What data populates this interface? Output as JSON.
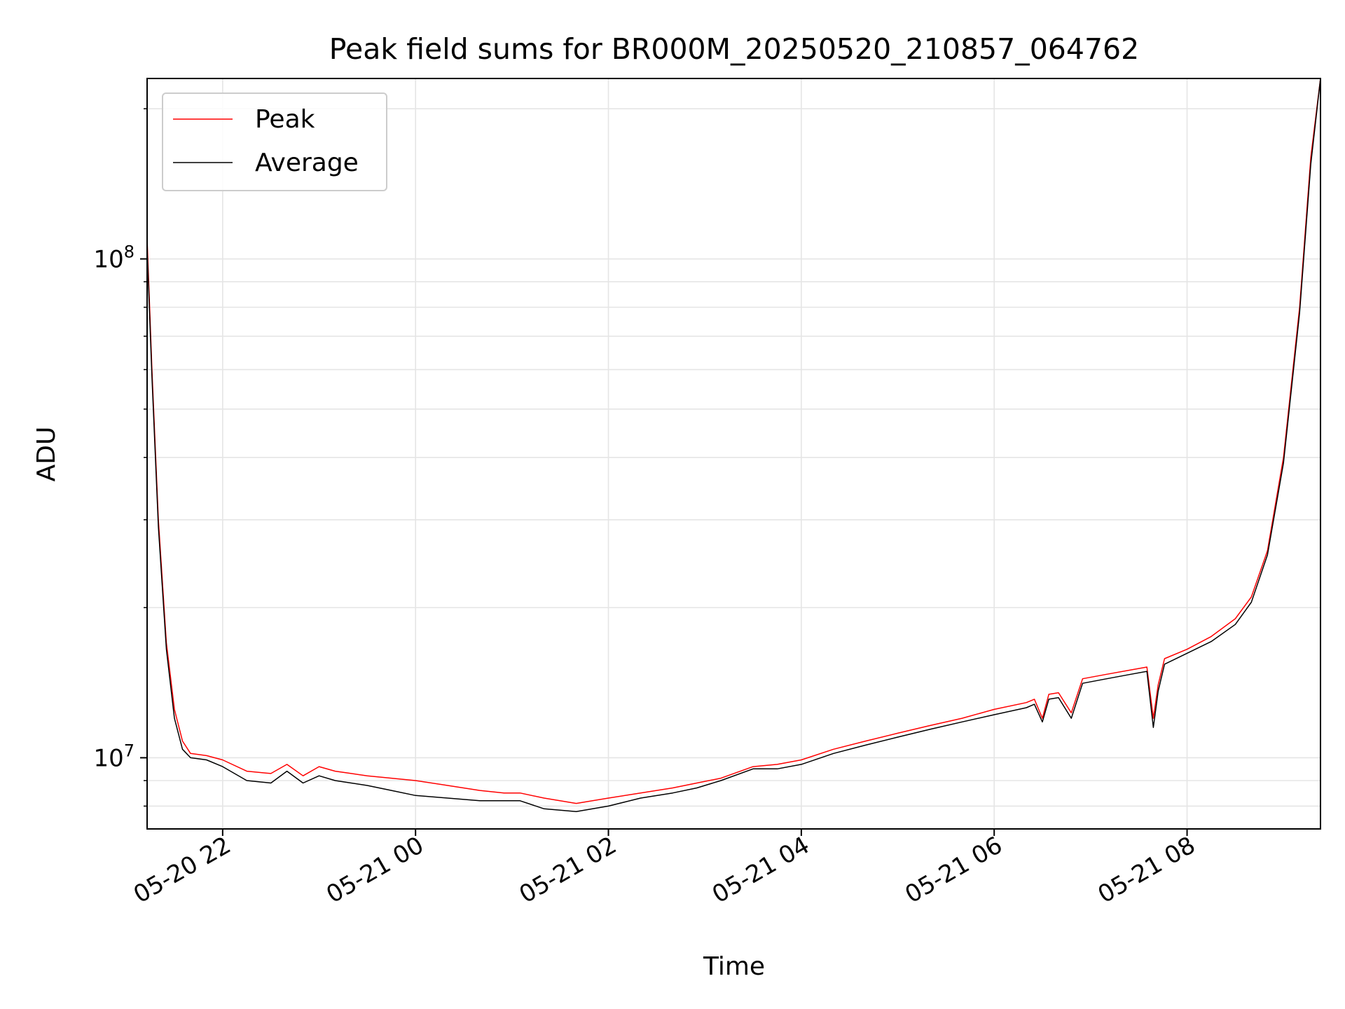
{
  "chart_data": {
    "type": "line",
    "title": "Peak field sums for BR000M_20250520_210857_064762",
    "xlabel": "Time",
    "ylabel": "ADU",
    "y_scale": "log",
    "xlim": [
      "2025-05-20 21:13",
      "2025-05-21 09:23"
    ],
    "ylim": [
      7200000,
      230000000
    ],
    "grid": true,
    "legend_position": "upper left",
    "x_tick_labels": [
      "05-20 22",
      "05-21 00",
      "05-21 02",
      "05-21 04",
      "05-21 06",
      "05-21 08"
    ],
    "x_ticks": [
      "2025-05-20 22:00",
      "2025-05-21 00:00",
      "2025-05-21 02:00",
      "2025-05-21 04:00",
      "2025-05-21 06:00",
      "2025-05-21 08:00"
    ],
    "y_tick_labels": [
      {
        "base": "10",
        "exp": "7",
        "value": 10000000
      },
      {
        "base": "10",
        "exp": "8",
        "value": 100000000
      }
    ],
    "series": [
      {
        "name": "Peak",
        "color": "#ff0000",
        "x": [
          "2025-05-20 21:13",
          "2025-05-20 21:16",
          "2025-05-20 21:20",
          "2025-05-20 21:25",
          "2025-05-20 21:30",
          "2025-05-20 21:35",
          "2025-05-20 21:40",
          "2025-05-20 21:50",
          "2025-05-20 22:00",
          "2025-05-20 22:15",
          "2025-05-20 22:30",
          "2025-05-20 22:40",
          "2025-05-20 22:50",
          "2025-05-20 23:00",
          "2025-05-20 23:10",
          "2025-05-20 23:20",
          "2025-05-20 23:30",
          "2025-05-20 23:45",
          "2025-05-21 00:00",
          "2025-05-21 00:20",
          "2025-05-21 00:40",
          "2025-05-21 00:55",
          "2025-05-21 01:05",
          "2025-05-21 01:20",
          "2025-05-21 01:40",
          "2025-05-21 02:00",
          "2025-05-21 02:20",
          "2025-05-21 02:40",
          "2025-05-21 02:55",
          "2025-05-21 03:10",
          "2025-05-21 03:30",
          "2025-05-21 03:45",
          "2025-05-21 04:00",
          "2025-05-21 04:20",
          "2025-05-21 04:40",
          "2025-05-21 05:00",
          "2025-05-21 05:20",
          "2025-05-21 05:40",
          "2025-05-21 06:00",
          "2025-05-21 06:20",
          "2025-05-21 06:25",
          "2025-05-21 06:30",
          "2025-05-21 06:34",
          "2025-05-21 06:40",
          "2025-05-21 06:48",
          "2025-05-21 06:55",
          "2025-05-21 07:10",
          "2025-05-21 07:25",
          "2025-05-21 07:35",
          "2025-05-21 07:39",
          "2025-05-21 07:42",
          "2025-05-21 07:46",
          "2025-05-21 08:00",
          "2025-05-21 08:15",
          "2025-05-21 08:30",
          "2025-05-21 08:40",
          "2025-05-21 08:50",
          "2025-05-21 09:00",
          "2025-05-21 09:10",
          "2025-05-21 09:17",
          "2025-05-21 09:23"
        ],
        "y": [
          110000000,
          60000000,
          30000000,
          17000000,
          12500000,
          10800000,
          10200000,
          10100000,
          9900000,
          9400000,
          9300000,
          9700000,
          9200000,
          9600000,
          9400000,
          9300000,
          9200000,
          9100000,
          9000000,
          8800000,
          8600000,
          8500000,
          8500000,
          8300000,
          8100000,
          8300000,
          8500000,
          8700000,
          8900000,
          9100000,
          9600000,
          9700000,
          9900000,
          10400000,
          10800000,
          11200000,
          11600000,
          12000000,
          12500000,
          12900000,
          13100000,
          12000000,
          13400000,
          13500000,
          12300000,
          14400000,
          14700000,
          15000000,
          15200000,
          12000000,
          14000000,
          15800000,
          16500000,
          17500000,
          19000000,
          21000000,
          26000000,
          40000000,
          80000000,
          160000000,
          230000000
        ]
      },
      {
        "name": "Average",
        "color": "#000000",
        "x": [
          "2025-05-20 21:13",
          "2025-05-20 21:16",
          "2025-05-20 21:20",
          "2025-05-20 21:25",
          "2025-05-20 21:30",
          "2025-05-20 21:35",
          "2025-05-20 21:40",
          "2025-05-20 21:50",
          "2025-05-20 22:00",
          "2025-05-20 22:15",
          "2025-05-20 22:30",
          "2025-05-20 22:40",
          "2025-05-20 22:50",
          "2025-05-20 23:00",
          "2025-05-20 23:10",
          "2025-05-20 23:20",
          "2025-05-20 23:30",
          "2025-05-20 23:45",
          "2025-05-21 00:00",
          "2025-05-21 00:20",
          "2025-05-21 00:40",
          "2025-05-21 00:55",
          "2025-05-21 01:05",
          "2025-05-21 01:20",
          "2025-05-21 01:40",
          "2025-05-21 02:00",
          "2025-05-21 02:20",
          "2025-05-21 02:40",
          "2025-05-21 02:55",
          "2025-05-21 03:10",
          "2025-05-21 03:30",
          "2025-05-21 03:45",
          "2025-05-21 04:00",
          "2025-05-21 04:20",
          "2025-05-21 04:40",
          "2025-05-21 05:00",
          "2025-05-21 05:20",
          "2025-05-21 05:40",
          "2025-05-21 06:00",
          "2025-05-21 06:20",
          "2025-05-21 06:25",
          "2025-05-21 06:30",
          "2025-05-21 06:34",
          "2025-05-21 06:40",
          "2025-05-21 06:48",
          "2025-05-21 06:55",
          "2025-05-21 07:10",
          "2025-05-21 07:25",
          "2025-05-21 07:35",
          "2025-05-21 07:39",
          "2025-05-21 07:42",
          "2025-05-21 07:46",
          "2025-05-21 08:00",
          "2025-05-21 08:15",
          "2025-05-21 08:30",
          "2025-05-21 08:40",
          "2025-05-21 08:50",
          "2025-05-21 09:00",
          "2025-05-21 09:10",
          "2025-05-21 09:17",
          "2025-05-21 09:23"
        ],
        "y": [
          105000000,
          58000000,
          29000000,
          16500000,
          12000000,
          10400000,
          10000000,
          9900000,
          9600000,
          9000000,
          8900000,
          9400000,
          8900000,
          9200000,
          9000000,
          8900000,
          8800000,
          8600000,
          8400000,
          8300000,
          8200000,
          8200000,
          8200000,
          7900000,
          7800000,
          8000000,
          8300000,
          8500000,
          8700000,
          9000000,
          9500000,
          9500000,
          9700000,
          10200000,
          10600000,
          11000000,
          11400000,
          11800000,
          12200000,
          12600000,
          12800000,
          11800000,
          13100000,
          13200000,
          12000000,
          14100000,
          14400000,
          14700000,
          14900000,
          11500000,
          13600000,
          15400000,
          16200000,
          17100000,
          18500000,
          20500000,
          25500000,
          39000000,
          78000000,
          155000000,
          230000000
        ]
      }
    ]
  }
}
